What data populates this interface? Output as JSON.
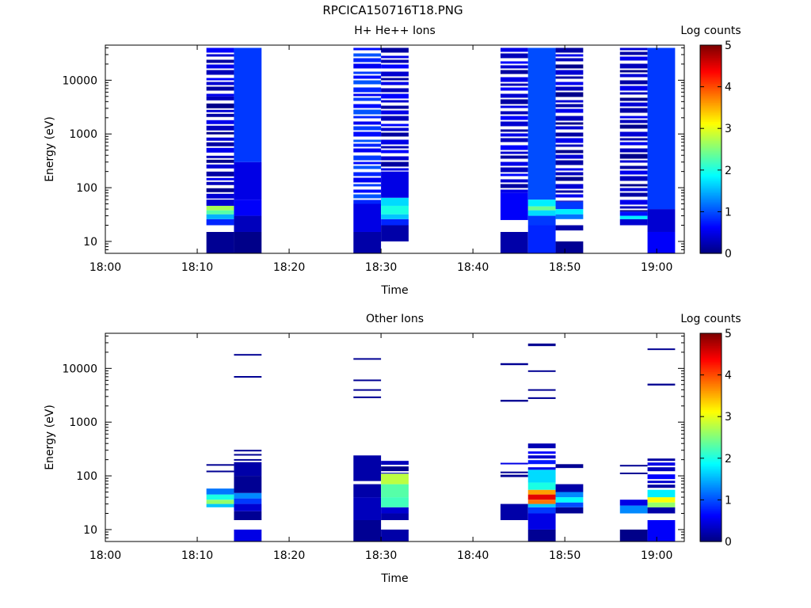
{
  "figure_title": "RPCICA150716T18.PNG",
  "colormap": [
    "#00007f",
    "#0000ff",
    "#007fff",
    "#00ffff",
    "#7fff7f",
    "#ffff00",
    "#ff7f00",
    "#ff0000",
    "#7f0000"
  ],
  "chart_data": [
    {
      "type": "heatmap",
      "title": "H+ He++ Ions",
      "xlabel": "Time",
      "ylabel": "Energy (eV)",
      "y_scale": "log",
      "xlim": [
        "18:00",
        "19:03"
      ],
      "ylim": [
        6,
        45000
      ],
      "x_ticks": [
        "18:00",
        "18:10",
        "18:20",
        "18:30",
        "18:40",
        "18:50",
        "19:00"
      ],
      "y_ticks": [
        10,
        100,
        1000,
        10000
      ],
      "y_tick_labels": [
        "10",
        "100",
        "1000",
        "10000"
      ],
      "colorbar": {
        "label": "Log counts",
        "range": [
          0,
          5
        ],
        "ticks": [
          "0",
          "1",
          "2",
          "3",
          "4",
          "5"
        ]
      },
      "columns": [
        {
          "t0": "18:11",
          "t1": "18:14",
          "bands": [
            {
              "e0": 6,
              "e1": 15,
              "v": 0.1
            },
            {
              "e0": 20,
              "e1": 26,
              "v": 0.8
            },
            {
              "e0": 26,
              "e1": 32,
              "v": 1.5
            },
            {
              "e0": 32,
              "e1": 38,
              "v": 2.3
            },
            {
              "e0": 38,
              "e1": 46,
              "v": 2.7
            },
            {
              "e0": 46,
              "e1": 60,
              "v": 0.4
            },
            {
              "e0": 60,
              "e1": 5000,
              "v": 0.3,
              "gaps": true
            },
            {
              "e0": 5000,
              "e1": 40000,
              "v": 0.4,
              "gaps": true
            }
          ]
        },
        {
          "t0": "18:14",
          "t1": "18:17",
          "bands": [
            {
              "e0": 6,
              "e1": 15,
              "v": 0.05
            },
            {
              "e0": 15,
              "e1": 30,
              "v": 0.3
            },
            {
              "e0": 30,
              "e1": 60,
              "v": 0.6
            },
            {
              "e0": 60,
              "e1": 300,
              "v": 0.5
            },
            {
              "e0": 300,
              "e1": 40000,
              "v": 0.9
            }
          ]
        },
        {
          "t0": "18:27",
          "t1": "18:30",
          "bands": [
            {
              "e0": 6,
              "e1": 15,
              "v": 0.2
            },
            {
              "e0": 15,
              "e1": 50,
              "v": 0.5
            },
            {
              "e0": 50,
              "e1": 40000,
              "v": 0.8,
              "gaps": true
            }
          ]
        },
        {
          "t0": "18:30",
          "t1": "18:33",
          "bands": [
            {
              "e0": 10,
              "e1": 20,
              "v": 0.2
            },
            {
              "e0": 20,
              "e1": 26,
              "v": 0.8
            },
            {
              "e0": 26,
              "e1": 32,
              "v": 1.6
            },
            {
              "e0": 32,
              "e1": 46,
              "v": 2.0
            },
            {
              "e0": 46,
              "e1": 65,
              "v": 1.7
            },
            {
              "e0": 65,
              "e1": 200,
              "v": 0.5
            },
            {
              "e0": 200,
              "e1": 40000,
              "v": 0.4,
              "gaps": true
            }
          ]
        },
        {
          "t0": "18:43",
          "t1": "18:46",
          "bands": [
            {
              "e0": 6,
              "e1": 15,
              "v": 0.2
            },
            {
              "e0": 25,
              "e1": 80,
              "v": 0.6
            },
            {
              "e0": 80,
              "e1": 40000,
              "v": 0.4,
              "gaps": true
            }
          ]
        },
        {
          "t0": "18:46",
          "t1": "18:49",
          "bands": [
            {
              "e0": 6,
              "e1": 20,
              "v": 0.8
            },
            {
              "e0": 20,
              "e1": 30,
              "v": 0.9
            },
            {
              "e0": 30,
              "e1": 38,
              "v": 1.7
            },
            {
              "e0": 38,
              "e1": 45,
              "v": 2.4
            },
            {
              "e0": 45,
              "e1": 60,
              "v": 1.8
            },
            {
              "e0": 60,
              "e1": 40000,
              "v": 1.0
            }
          ]
        },
        {
          "t0": "18:49",
          "t1": "18:52",
          "bands": [
            {
              "e0": 6,
              "e1": 10,
              "v": 0.1
            },
            {
              "e0": 16,
              "e1": 20,
              "v": 0.2
            },
            {
              "e0": 26,
              "e1": 32,
              "v": 1.2
            },
            {
              "e0": 32,
              "e1": 40,
              "v": 1.8
            },
            {
              "e0": 40,
              "e1": 55,
              "v": 0.9
            },
            {
              "e0": 55,
              "e1": 40000,
              "v": 0.3,
              "gaps": true
            }
          ]
        },
        {
          "t0": "18:56",
          "t1": "18:59",
          "bands": [
            {
              "e0": 20,
              "e1": 26,
              "v": 0.4
            },
            {
              "e0": 26,
              "e1": 30,
              "v": 1.8
            },
            {
              "e0": 30,
              "e1": 36,
              "v": 0.7
            },
            {
              "e0": 36,
              "e1": 40000,
              "v": 0.3,
              "gaps": true
            }
          ]
        },
        {
          "t0": "18:59",
          "t1": "19:02",
          "bands": [
            {
              "e0": 6,
              "e1": 15,
              "v": 0.6
            },
            {
              "e0": 15,
              "e1": 40,
              "v": 0.4
            },
            {
              "e0": 40,
              "e1": 40000,
              "v": 0.9
            }
          ]
        }
      ]
    },
    {
      "type": "heatmap",
      "title": "Other Ions",
      "xlabel": "Time",
      "ylabel": "Energy (eV)",
      "y_scale": "log",
      "xlim": [
        "18:00",
        "19:03"
      ],
      "ylim": [
        6,
        45000
      ],
      "x_ticks": [
        "18:00",
        "18:10",
        "18:20",
        "18:30",
        "18:40",
        "18:50",
        "19:00"
      ],
      "y_ticks": [
        10,
        100,
        1000,
        10000
      ],
      "y_tick_labels": [
        "10",
        "100",
        "1000",
        "10000"
      ],
      "colorbar": {
        "label": "Log counts",
        "range": [
          0,
          5
        ],
        "ticks": [
          "0",
          "1",
          "2",
          "3",
          "4",
          "5"
        ]
      },
      "columns": [
        {
          "t0": "18:11",
          "t1": "18:14",
          "bands": [
            {
              "e0": 26,
              "e1": 30,
              "v": 1.6
            },
            {
              "e0": 30,
              "e1": 36,
              "v": 2.6
            },
            {
              "e0": 36,
              "e1": 45,
              "v": 2.0
            },
            {
              "e0": 45,
              "e1": 58,
              "v": 1.2
            },
            {
              "e0": 118,
              "e1": 125,
              "v": 0.1
            },
            {
              "e0": 155,
              "e1": 165,
              "v": 0.1
            }
          ]
        },
        {
          "t0": "18:14",
          "t1": "18:17",
          "bands": [
            {
              "e0": 6,
              "e1": 10,
              "v": 0.5
            },
            {
              "e0": 15,
              "e1": 22,
              "v": 0.1
            },
            {
              "e0": 22,
              "e1": 30,
              "v": 0.4
            },
            {
              "e0": 30,
              "e1": 38,
              "v": 0.9
            },
            {
              "e0": 38,
              "e1": 48,
              "v": 1.3
            },
            {
              "e0": 48,
              "e1": 100,
              "v": 0.1
            },
            {
              "e0": 100,
              "e1": 180,
              "v": 0.2
            },
            {
              "e0": 195,
              "e1": 205,
              "v": 0.1
            },
            {
              "e0": 240,
              "e1": 255,
              "v": 0.1
            },
            {
              "e0": 290,
              "e1": 305,
              "v": 0.1
            },
            {
              "e0": 6800,
              "e1": 7200,
              "v": 0.1
            },
            {
              "e0": 17500,
              "e1": 18500,
              "v": 0.1
            }
          ]
        },
        {
          "t0": "18:27",
          "t1": "18:30",
          "bands": [
            {
              "e0": 6,
              "e1": 15,
              "v": 0.1
            },
            {
              "e0": 15,
              "e1": 40,
              "v": 0.3
            },
            {
              "e0": 40,
              "e1": 70,
              "v": 0.2
            },
            {
              "e0": 80,
              "e1": 240,
              "v": 0.2
            },
            {
              "e0": 2800,
              "e1": 3000,
              "v": 0.1
            },
            {
              "e0": 3900,
              "e1": 4100,
              "v": 0.1
            },
            {
              "e0": 5800,
              "e1": 6200,
              "v": 0.1
            },
            {
              "e0": 14500,
              "e1": 15500,
              "v": 0.1
            }
          ]
        },
        {
          "t0": "18:30",
          "t1": "18:33",
          "bands": [
            {
              "e0": 6,
              "e1": 10,
              "v": 0.2
            },
            {
              "e0": 15,
              "e1": 20,
              "v": 0.2
            },
            {
              "e0": 20,
              "e1": 26,
              "v": 0.4
            },
            {
              "e0": 26,
              "e1": 40,
              "v": 2.2
            },
            {
              "e0": 40,
              "e1": 70,
              "v": 2.3
            },
            {
              "e0": 70,
              "e1": 110,
              "v": 2.8
            },
            {
              "e0": 110,
              "e1": 190,
              "v": 0.3,
              "gaps": true
            }
          ]
        },
        {
          "t0": "18:43",
          "t1": "18:46",
          "bands": [
            {
              "e0": 15,
              "e1": 30,
              "v": 0.2
            },
            {
              "e0": 95,
              "e1": 105,
              "v": 0.1
            },
            {
              "e0": 115,
              "e1": 120,
              "v": 0.1
            },
            {
              "e0": 170,
              "e1": 175,
              "v": 0.5
            },
            {
              "e0": 2400,
              "e1": 2600,
              "v": 0.1
            },
            {
              "e0": 11500,
              "e1": 12500,
              "v": 0.1
            }
          ]
        },
        {
          "t0": "18:46",
          "t1": "18:49",
          "bands": [
            {
              "e0": 6,
              "e1": 10,
              "v": 0.1
            },
            {
              "e0": 10,
              "e1": 20,
              "v": 0.5
            },
            {
              "e0": 20,
              "e1": 26,
              "v": 0.9
            },
            {
              "e0": 26,
              "e1": 30,
              "v": 1.6
            },
            {
              "e0": 30,
              "e1": 36,
              "v": 3.8
            },
            {
              "e0": 36,
              "e1": 45,
              "v": 4.5
            },
            {
              "e0": 45,
              "e1": 55,
              "v": 3.6
            },
            {
              "e0": 55,
              "e1": 75,
              "v": 2.0
            },
            {
              "e0": 75,
              "e1": 130,
              "v": 1.7
            },
            {
              "e0": 130,
              "e1": 400,
              "v": 0.5,
              "gaps": true
            },
            {
              "e0": 2700,
              "e1": 2900,
              "v": 0.1
            },
            {
              "e0": 3900,
              "e1": 4100,
              "v": 0.1
            },
            {
              "e0": 8800,
              "e1": 9200,
              "v": 0.1
            },
            {
              "e0": 26000,
              "e1": 29000,
              "v": 0.1
            }
          ]
        },
        {
          "t0": "18:49",
          "t1": "18:52",
          "bands": [
            {
              "e0": 20,
              "e1": 26,
              "v": 0.1
            },
            {
              "e0": 26,
              "e1": 32,
              "v": 1.0
            },
            {
              "e0": 32,
              "e1": 40,
              "v": 1.9
            },
            {
              "e0": 40,
              "e1": 50,
              "v": 1.3
            },
            {
              "e0": 50,
              "e1": 70,
              "v": 0.2
            },
            {
              "e0": 140,
              "e1": 165,
              "v": 0.1
            }
          ]
        },
        {
          "t0": "18:56",
          "t1": "18:59",
          "bands": [
            {
              "e0": 6,
              "e1": 10,
              "v": 0.05
            },
            {
              "e0": 20,
              "e1": 28,
              "v": 1.3
            },
            {
              "e0": 28,
              "e1": 36,
              "v": 0.5
            },
            {
              "e0": 108,
              "e1": 115,
              "v": 0.1
            },
            {
              "e0": 150,
              "e1": 160,
              "v": 0.1
            }
          ]
        },
        {
          "t0": "18:59",
          "t1": "19:02",
          "bands": [
            {
              "e0": 6,
              "e1": 15,
              "v": 0.6
            },
            {
              "e0": 20,
              "e1": 26,
              "v": 0.2
            },
            {
              "e0": 26,
              "e1": 32,
              "v": 2.6
            },
            {
              "e0": 32,
              "e1": 40,
              "v": 3.1
            },
            {
              "e0": 40,
              "e1": 55,
              "v": 1.8
            },
            {
              "e0": 55,
              "e1": 210,
              "v": 0.4,
              "gaps": true
            },
            {
              "e0": 4800,
              "e1": 5200,
              "v": 0.1
            },
            {
              "e0": 22000,
              "e1": 23500,
              "v": 0.1
            }
          ]
        }
      ]
    }
  ]
}
